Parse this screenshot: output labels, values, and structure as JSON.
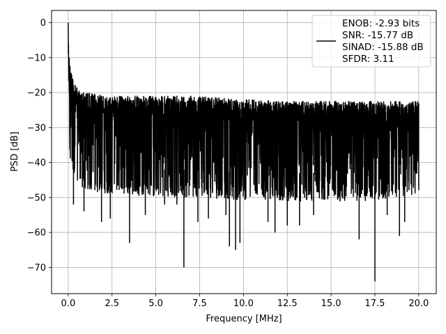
{
  "chart_data": {
    "type": "line",
    "title": "",
    "xlabel": "Frequency [MHz]",
    "ylabel": "PSD [dB]",
    "xlim": [
      -0.95,
      21.0
    ],
    "ylim": [
      -77.5,
      3.5
    ],
    "x_ticks": [
      0.0,
      2.5,
      5.0,
      7.5,
      10.0,
      12.5,
      15.0,
      17.5,
      20.0
    ],
    "x_tick_labels": [
      "0.0",
      "2.5",
      "5.0",
      "7.5",
      "10.0",
      "12.5",
      "15.0",
      "17.5",
      "20.0"
    ],
    "y_ticks": [
      0,
      -10,
      -20,
      -30,
      -40,
      -50,
      -60,
      -70
    ],
    "y_tick_labels": [
      "0",
      "−10",
      "−20",
      "−30",
      "−40",
      "−50",
      "−60",
      "−70"
    ],
    "grid": true,
    "legend": {
      "location": "top-right"
    },
    "series": [
      {
        "name": "ENOB: -2.93 bits\nSNR: -15.77 dB\nSINAD: -15.88 dB\nSFDR: 3.11",
        "name_lines": [
          "ENOB: -2.93 bits",
          "SNR: -15.77 dB",
          "SINAD: -15.88 dB",
          "SFDR: 3.11"
        ],
        "color": "#000000",
        "x_range": [
          0.0,
          20.0
        ],
        "peak": {
          "x": 0.0,
          "y": 0.0
        },
        "upper_envelope": [
          [
            0.1,
            -12
          ],
          [
            0.3,
            -17
          ],
          [
            0.6,
            -19.5
          ],
          [
            1.0,
            -20
          ],
          [
            2.5,
            -21
          ],
          [
            5.0,
            -21
          ],
          [
            7.5,
            -21
          ],
          [
            10.0,
            -22
          ],
          [
            12.5,
            -22.5
          ],
          [
            15.0,
            -22.5
          ],
          [
            17.5,
            -22.5
          ],
          [
            20.0,
            -22.5
          ]
        ],
        "lower_envelope": [
          [
            0.3,
            -42
          ],
          [
            1.0,
            -45
          ],
          [
            2.5,
            -46
          ],
          [
            5.0,
            -47
          ],
          [
            7.5,
            -47
          ],
          [
            10.0,
            -48
          ],
          [
            12.5,
            -48
          ],
          [
            15.0,
            -48
          ],
          [
            17.5,
            -48
          ],
          [
            20.0,
            -46
          ]
        ],
        "notable_dips": [
          [
            0.3,
            -52
          ],
          [
            0.9,
            -54
          ],
          [
            1.9,
            -57
          ],
          [
            2.4,
            -56
          ],
          [
            3.5,
            -63
          ],
          [
            4.4,
            -55
          ],
          [
            5.5,
            -52
          ],
          [
            6.2,
            -52
          ],
          [
            6.6,
            -70
          ],
          [
            7.4,
            -57
          ],
          [
            8.0,
            -56
          ],
          [
            9.0,
            -55
          ],
          [
            9.2,
            -64
          ],
          [
            9.55,
            -65
          ],
          [
            9.8,
            -63
          ],
          [
            11.4,
            -57
          ],
          [
            11.8,
            -60
          ],
          [
            12.5,
            -58
          ],
          [
            13.2,
            -58
          ],
          [
            14.0,
            -55
          ],
          [
            16.6,
            -62
          ],
          [
            17.5,
            -74
          ],
          [
            18.2,
            -55
          ],
          [
            18.9,
            -61
          ],
          [
            19.2,
            -57
          ]
        ]
      }
    ]
  }
}
